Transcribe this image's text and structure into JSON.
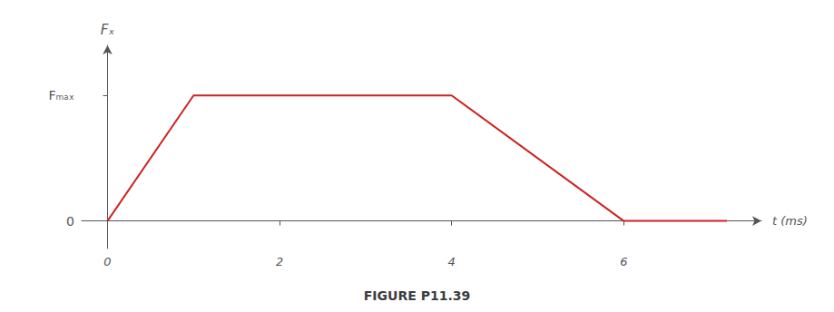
{
  "chart_data": {
    "type": "line",
    "title": "FIGURE P11.39",
    "xlabel": "t (ms)",
    "ylabel": "Fₓ",
    "x": [
      0,
      1,
      4,
      6,
      7.2
    ],
    "values": [
      0,
      1,
      1,
      0,
      0
    ],
    "color": "#cc2222",
    "xlim": [
      -0.3,
      7.6
    ],
    "xticks": [
      0,
      2,
      4,
      6
    ],
    "ylim": [
      -0.22,
      1.4
    ],
    "yticks": [
      0,
      {
        "value": 1.0,
        "label": "Fₘₐₓ"
      }
    ],
    "grid": false
  }
}
